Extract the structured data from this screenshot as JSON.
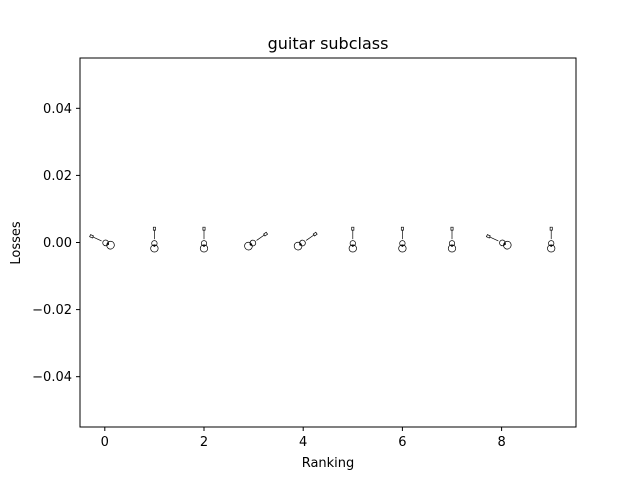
{
  "chart_data": {
    "type": "scatter",
    "title": "guitar subclass",
    "xlabel": "Ranking",
    "ylabel": "Losses",
    "xlim": [
      -0.5,
      9.5
    ],
    "ylim": [
      -0.055,
      0.055
    ],
    "x_ticks": [
      0,
      2,
      4,
      6,
      8
    ],
    "x_tick_labels": [
      "0",
      "2",
      "4",
      "6",
      "8"
    ],
    "y_ticks": [
      -0.04,
      -0.02,
      0.0,
      0.02,
      0.04
    ],
    "y_tick_labels": [
      "−0.04",
      "−0.02",
      "0.00",
      "0.02",
      "0.04"
    ],
    "grid": false,
    "marker": "guitar thumbnail images",
    "points": [
      {
        "x": 0,
        "y": 0.0,
        "icon": "guitar-horizontal"
      },
      {
        "x": 1,
        "y": 0.0,
        "icon": "guitar-vertical"
      },
      {
        "x": 2,
        "y": 0.0,
        "icon": "guitar-vertical"
      },
      {
        "x": 3,
        "y": 0.0,
        "icon": "guitar-diagonal"
      },
      {
        "x": 4,
        "y": 0.0,
        "icon": "guitar-diagonal"
      },
      {
        "x": 5,
        "y": 0.0,
        "icon": "guitar-vertical"
      },
      {
        "x": 6,
        "y": 0.0,
        "icon": "guitar-vertical"
      },
      {
        "x": 7,
        "y": 0.0,
        "icon": "guitar-vertical"
      },
      {
        "x": 8,
        "y": 0.0,
        "icon": "guitar-horizontal"
      },
      {
        "x": 9,
        "y": 0.0,
        "icon": "guitar-vertical"
      }
    ]
  }
}
